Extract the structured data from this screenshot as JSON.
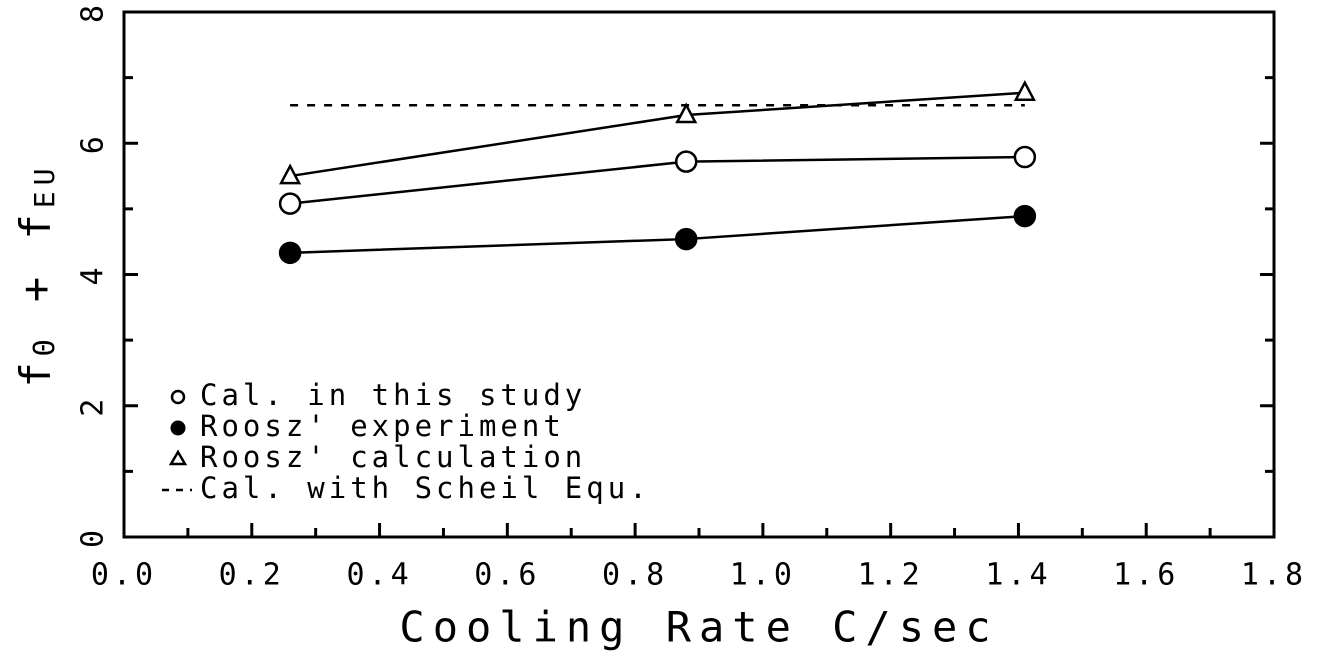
{
  "chart_data": {
    "type": "line",
    "xlabel": "Cooling Rate C/sec",
    "ylabel": [
      "f",
      "Θ",
      " + f",
      "EU"
    ],
    "ylabel_sub": [
      false,
      true,
      false,
      true
    ],
    "xlim": [
      0,
      1.8
    ],
    "xticks": [
      {
        "value": 0,
        "label": "0.0"
      },
      0.2,
      0.4,
      0.6,
      0.8,
      {
        "value": 1,
        "label": "1.0"
      },
      1.2,
      1.4,
      1.6,
      1.8
    ],
    "xminorticks": [
      0.1,
      0.3,
      0.5,
      0.7,
      0.9,
      1.1,
      1.3,
      1.5,
      1.7
    ],
    "ylim": [
      0,
      8
    ],
    "yticks": [
      0,
      2,
      4,
      6,
      8
    ],
    "yminorticks": [
      1,
      3,
      5,
      7
    ],
    "legend": "lower left",
    "series": [
      {
        "name": "Cal. in this study",
        "color": "#000000",
        "marker": "open-circle",
        "x": [
          0.26,
          0.88,
          1.41
        ],
        "values": [
          5.08,
          5.72,
          5.79
        ]
      },
      {
        "name": "Roosz' experiment",
        "color": "#000000",
        "marker": "filled-circle",
        "x": [
          0.26,
          0.88,
          1.41
        ],
        "values": [
          4.33,
          4.54,
          4.89
        ]
      },
      {
        "name": "Roosz' calculation",
        "color": "#000000",
        "marker": "open-triangle",
        "x": [
          0.26,
          0.88,
          1.41
        ],
        "values": [
          5.5,
          6.43,
          6.77
        ]
      },
      {
        "name": "Cal. with Scheil Equ.",
        "color": "#000000",
        "marker": "dashed",
        "x": [
          0.26,
          1.41
        ],
        "values": [
          6.58,
          6.58
        ]
      }
    ]
  }
}
